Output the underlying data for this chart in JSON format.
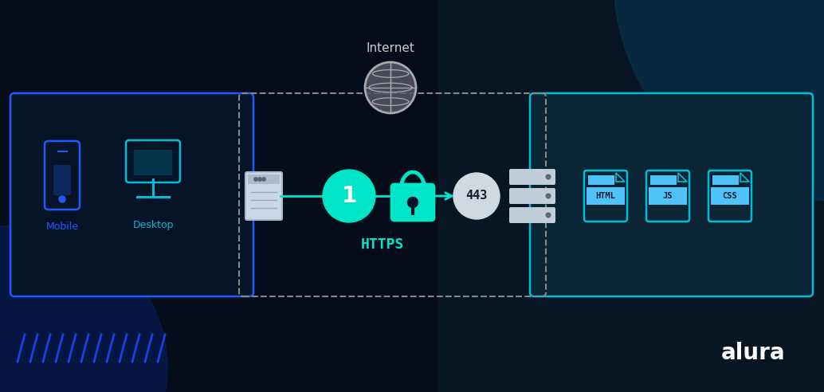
{
  "bg_color": "#050d1a",
  "title": "Internet",
  "client_box_border": "#1e5aff",
  "server_box_border": "#00bcd4",
  "mobile_label": "Mobile",
  "desktop_label": "Desktop",
  "protocol_label": "HTTPS",
  "port_label": "443",
  "file_labels": [
    "HTML",
    "JS",
    "CSS"
  ],
  "cyan": "#00e5c8",
  "light_cyan": "#00bcd4",
  "light_blue": "#4fc3f7",
  "number_1": "1",
  "alura_text": "alura",
  "slash_color": "#1e4aff"
}
